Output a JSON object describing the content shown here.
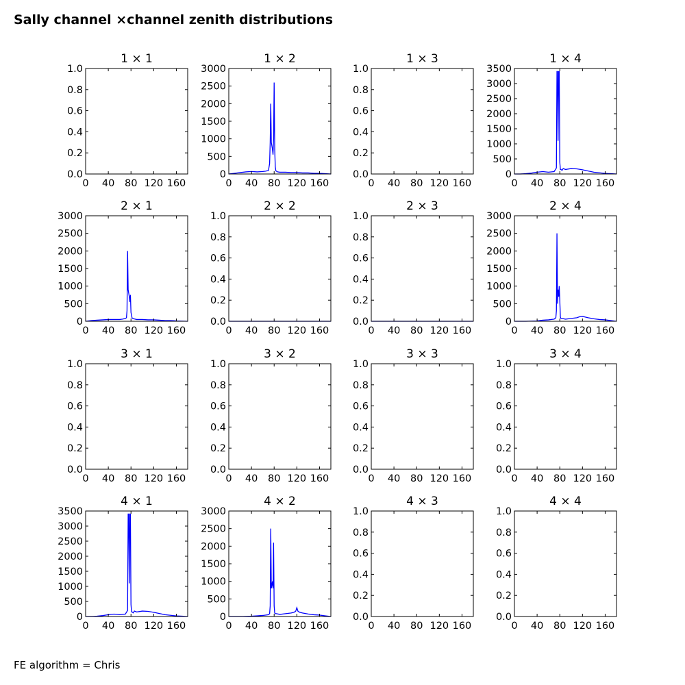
{
  "figure": {
    "title": "Sally channel ×channel zenith distributions",
    "footnote": "FE algorithm = Chris",
    "line_color": "#0000ff"
  },
  "chart_data": [
    {
      "type": "line",
      "title": "1 × 1",
      "xlim": [
        0,
        180
      ],
      "ylim": [
        0,
        1
      ],
      "xticks": [
        0,
        40,
        80,
        120,
        160
      ],
      "yticks": [
        0.0,
        0.2,
        0.4,
        0.6,
        0.8,
        1.0
      ],
      "ytick_labels": [
        "0.0",
        "0.2",
        "0.4",
        "0.6",
        "0.8",
        "1.0"
      ],
      "series": []
    },
    {
      "type": "line",
      "title": "1 × 2",
      "xlim": [
        0,
        180
      ],
      "ylim": [
        0,
        3000
      ],
      "xticks": [
        0,
        40,
        80,
        120,
        160
      ],
      "yticks": [
        0,
        500,
        1000,
        1500,
        2000,
        2500,
        3000
      ],
      "ytick_labels": [
        "0",
        "500",
        "1000",
        "1500",
        "2000",
        "2500",
        "3000"
      ],
      "series": [
        {
          "x": [
            0,
            10,
            20,
            30,
            40,
            50,
            60,
            65,
            70,
            72,
            73,
            74,
            75,
            76,
            77,
            78,
            79,
            80,
            81,
            82,
            83,
            84,
            86,
            90,
            100,
            110,
            120,
            130,
            140,
            150,
            160,
            170,
            180
          ],
          "y": [
            0,
            20,
            40,
            60,
            70,
            60,
            70,
            80,
            100,
            300,
            900,
            2000,
            900,
            800,
            700,
            550,
            1000,
            2600,
            700,
            200,
            90,
            80,
            60,
            50,
            50,
            40,
            40,
            30,
            30,
            20,
            20,
            10,
            0
          ]
        }
      ]
    },
    {
      "type": "line",
      "title": "1 × 3",
      "xlim": [
        0,
        180
      ],
      "ylim": [
        0,
        1
      ],
      "xticks": [
        0,
        40,
        80,
        120,
        160
      ],
      "yticks": [
        0.0,
        0.2,
        0.4,
        0.6,
        0.8,
        1.0
      ],
      "ytick_labels": [
        "0.0",
        "0.2",
        "0.4",
        "0.6",
        "0.8",
        "1.0"
      ],
      "series": []
    },
    {
      "type": "line",
      "title": "1 × 4",
      "xlim": [
        0,
        180
      ],
      "ylim": [
        0,
        3500
      ],
      "xticks": [
        0,
        40,
        80,
        120,
        160
      ],
      "yticks": [
        0,
        500,
        1000,
        1500,
        2000,
        2500,
        3000,
        3500
      ],
      "ytick_labels": [
        "0",
        "500",
        "1000",
        "1500",
        "2000",
        "2500",
        "3000",
        "3500"
      ],
      "series": [
        {
          "x": [
            0,
            10,
            20,
            30,
            40,
            50,
            60,
            70,
            74,
            75,
            76,
            77,
            78,
            79,
            80,
            81,
            82,
            84,
            86,
            90,
            100,
            110,
            120,
            130,
            140,
            150,
            160,
            170,
            175,
            180
          ],
          "y": [
            0,
            0,
            10,
            30,
            60,
            80,
            60,
            80,
            200,
            3400,
            3400,
            1100,
            3400,
            3400,
            400,
            150,
            150,
            120,
            180,
            150,
            180,
            170,
            140,
            100,
            60,
            40,
            20,
            10,
            5,
            0
          ]
        }
      ]
    },
    {
      "type": "line",
      "title": "2 × 1",
      "xlim": [
        0,
        180
      ],
      "ylim": [
        0,
        3000
      ],
      "xticks": [
        0,
        40,
        80,
        120,
        160
      ],
      "yticks": [
        0,
        500,
        1000,
        1500,
        2000,
        2500,
        3000
      ],
      "ytick_labels": [
        "0",
        "500",
        "1000",
        "1500",
        "2000",
        "2500",
        "3000"
      ],
      "series": [
        {
          "x": [
            0,
            10,
            20,
            30,
            40,
            50,
            60,
            65,
            70,
            72,
            73,
            74,
            75,
            76,
            77,
            78,
            79,
            80,
            82,
            85,
            90,
            100,
            110,
            120,
            130,
            140,
            150,
            160,
            170,
            180
          ],
          "y": [
            0,
            20,
            30,
            40,
            50,
            50,
            50,
            60,
            80,
            100,
            300,
            2000,
            900,
            800,
            700,
            550,
            750,
            250,
            90,
            70,
            50,
            50,
            40,
            40,
            30,
            20,
            20,
            10,
            5,
            0
          ]
        }
      ]
    },
    {
      "type": "line",
      "title": "2 × 2",
      "xlim": [
        0,
        180
      ],
      "ylim": [
        0,
        1
      ],
      "xticks": [
        0,
        40,
        80,
        120,
        160
      ],
      "yticks": [
        0.0,
        0.2,
        0.4,
        0.6,
        0.8,
        1.0
      ],
      "ytick_labels": [
        "0.0",
        "0.2",
        "0.4",
        "0.6",
        "0.8",
        "1.0"
      ],
      "series": [
        {
          "x": [
            0,
            180
          ],
          "y": [
            0,
            0
          ]
        }
      ]
    },
    {
      "type": "line",
      "title": "2 × 3",
      "xlim": [
        0,
        180
      ],
      "ylim": [
        0,
        1
      ],
      "xticks": [
        0,
        40,
        80,
        120,
        160
      ],
      "yticks": [
        0.0,
        0.2,
        0.4,
        0.6,
        0.8,
        1.0
      ],
      "ytick_labels": [
        "0.0",
        "0.2",
        "0.4",
        "0.6",
        "0.8",
        "1.0"
      ],
      "series": [
        {
          "x": [
            0,
            180
          ],
          "y": [
            0,
            0
          ]
        }
      ]
    },
    {
      "type": "line",
      "title": "2 × 4",
      "xlim": [
        0,
        180
      ],
      "ylim": [
        0,
        3000
      ],
      "xticks": [
        0,
        40,
        80,
        120,
        160
      ],
      "yticks": [
        0,
        500,
        1000,
        1500,
        2000,
        2500,
        3000
      ],
      "ytick_labels": [
        "0",
        "500",
        "1000",
        "1500",
        "2000",
        "2500",
        "3000"
      ],
      "series": [
        {
          "x": [
            0,
            20,
            40,
            50,
            60,
            70,
            73,
            74,
            75,
            76,
            77,
            78,
            79,
            80,
            81,
            82,
            84,
            90,
            100,
            110,
            115,
            120,
            125,
            130,
            140,
            150,
            160,
            170,
            180
          ],
          "y": [
            0,
            0,
            10,
            30,
            40,
            60,
            100,
            300,
            2500,
            500,
            900,
            700,
            1000,
            600,
            120,
            80,
            80,
            60,
            80,
            100,
            130,
            140,
            120,
            100,
            70,
            50,
            40,
            20,
            0
          ]
        }
      ]
    },
    {
      "type": "line",
      "title": "3 × 1",
      "xlim": [
        0,
        180
      ],
      "ylim": [
        0,
        1
      ],
      "xticks": [
        0,
        40,
        80,
        120,
        160
      ],
      "yticks": [
        0.0,
        0.2,
        0.4,
        0.6,
        0.8,
        1.0
      ],
      "ytick_labels": [
        "0.0",
        "0.2",
        "0.4",
        "0.6",
        "0.8",
        "1.0"
      ],
      "series": []
    },
    {
      "type": "line",
      "title": "3 × 2",
      "xlim": [
        0,
        180
      ],
      "ylim": [
        0,
        1
      ],
      "xticks": [
        0,
        40,
        80,
        120,
        160
      ],
      "yticks": [
        0.0,
        0.2,
        0.4,
        0.6,
        0.8,
        1.0
      ],
      "ytick_labels": [
        "0.0",
        "0.2",
        "0.4",
        "0.6",
        "0.8",
        "1.0"
      ],
      "series": []
    },
    {
      "type": "line",
      "title": "3 × 3",
      "xlim": [
        0,
        180
      ],
      "ylim": [
        0,
        1
      ],
      "xticks": [
        0,
        40,
        80,
        120,
        160
      ],
      "yticks": [
        0.0,
        0.2,
        0.4,
        0.6,
        0.8,
        1.0
      ],
      "ytick_labels": [
        "0.0",
        "0.2",
        "0.4",
        "0.6",
        "0.8",
        "1.0"
      ],
      "series": []
    },
    {
      "type": "line",
      "title": "3 × 4",
      "xlim": [
        0,
        180
      ],
      "ylim": [
        0,
        1
      ],
      "xticks": [
        0,
        40,
        80,
        120,
        160
      ],
      "yticks": [
        0.0,
        0.2,
        0.4,
        0.6,
        0.8,
        1.0
      ],
      "ytick_labels": [
        "0.0",
        "0.2",
        "0.4",
        "0.6",
        "0.8",
        "1.0"
      ],
      "series": []
    },
    {
      "type": "line",
      "title": "4 × 1",
      "xlim": [
        0,
        180
      ],
      "ylim": [
        0,
        3500
      ],
      "xticks": [
        0,
        40,
        80,
        120,
        160
      ],
      "yticks": [
        0,
        500,
        1000,
        1500,
        2000,
        2500,
        3000,
        3500
      ],
      "ytick_labels": [
        "0",
        "500",
        "1000",
        "1500",
        "2000",
        "2500",
        "3000",
        "3500"
      ],
      "series": [
        {
          "x": [
            0,
            10,
            20,
            30,
            40,
            50,
            60,
            70,
            74,
            75,
            76,
            77,
            78,
            79,
            80,
            81,
            82,
            84,
            86,
            90,
            100,
            110,
            120,
            130,
            140,
            150,
            160,
            170,
            175,
            180
          ],
          "y": [
            0,
            0,
            10,
            30,
            60,
            80,
            60,
            80,
            200,
            3400,
            3400,
            1100,
            3400,
            3400,
            400,
            150,
            150,
            120,
            180,
            150,
            180,
            170,
            140,
            100,
            60,
            40,
            20,
            10,
            5,
            0
          ]
        }
      ]
    },
    {
      "type": "line",
      "title": "4 × 2",
      "xlim": [
        0,
        180
      ],
      "ylim": [
        0,
        3000
      ],
      "xticks": [
        0,
        40,
        80,
        120,
        160
      ],
      "yticks": [
        0,
        500,
        1000,
        1500,
        2000,
        2500,
        3000
      ],
      "ytick_labels": [
        "0",
        "500",
        "1000",
        "1500",
        "2000",
        "2500",
        "3000"
      ],
      "series": [
        {
          "x": [
            0,
            20,
            40,
            50,
            60,
            70,
            72,
            73,
            74,
            75,
            76,
            77,
            78,
            79,
            80,
            81,
            82,
            84,
            90,
            100,
            110,
            115,
            118,
            120,
            122,
            125,
            130,
            140,
            150,
            160,
            170,
            180
          ],
          "y": [
            0,
            0,
            10,
            20,
            30,
            50,
            80,
            300,
            2500,
            800,
            900,
            1000,
            800,
            2100,
            300,
            100,
            80,
            80,
            60,
            80,
            100,
            120,
            150,
            250,
            150,
            120,
            100,
            70,
            50,
            40,
            20,
            0
          ]
        }
      ]
    },
    {
      "type": "line",
      "title": "4 × 3",
      "xlim": [
        0,
        180
      ],
      "ylim": [
        0,
        1
      ],
      "xticks": [
        0,
        40,
        80,
        120,
        160
      ],
      "yticks": [
        0.0,
        0.2,
        0.4,
        0.6,
        0.8,
        1.0
      ],
      "ytick_labels": [
        "0.0",
        "0.2",
        "0.4",
        "0.6",
        "0.8",
        "1.0"
      ],
      "series": []
    },
    {
      "type": "line",
      "title": "4 × 4",
      "xlim": [
        0,
        180
      ],
      "ylim": [
        0,
        1
      ],
      "xticks": [
        0,
        40,
        80,
        120,
        160
      ],
      "yticks": [
        0.0,
        0.2,
        0.4,
        0.6,
        0.8,
        1.0
      ],
      "ytick_labels": [
        "0.0",
        "0.2",
        "0.4",
        "0.6",
        "0.8",
        "1.0"
      ],
      "series": []
    }
  ]
}
